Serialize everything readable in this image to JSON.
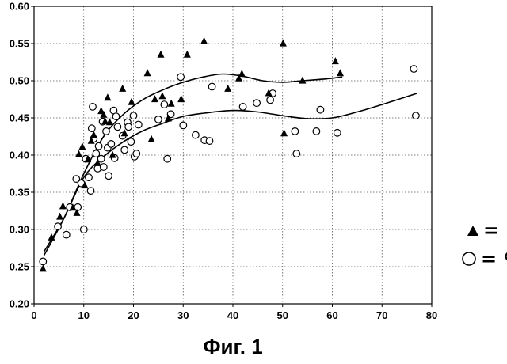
{
  "caption": "Фиг. 1",
  "chart_data": {
    "type": "scatter",
    "xlim": [
      0,
      80
    ],
    "ylim": [
      0.2,
      0.6
    ],
    "xticks": [
      "0",
      "10",
      "20",
      "30",
      "40",
      "50",
      "60",
      "70",
      "80"
    ],
    "yticks": [
      "0.20",
      "0.25",
      "0.30",
      "0.35",
      "0.40",
      "0.45",
      "0.50",
      "0.55",
      "0.60"
    ],
    "grid": "dotted",
    "legend_position": "right",
    "series": [
      {
        "name": "♂",
        "marker": "filled-triangle",
        "color": "#000000",
        "points": [
          [
            1.8,
            0.248
          ],
          [
            3.5,
            0.29
          ],
          [
            5.2,
            0.318
          ],
          [
            5.8,
            0.332
          ],
          [
            7.8,
            0.33
          ],
          [
            8.6,
            0.323
          ],
          [
            9.0,
            0.402
          ],
          [
            9.7,
            0.412
          ],
          [
            10.2,
            0.36
          ],
          [
            10.8,
            0.395
          ],
          [
            11.5,
            0.42
          ],
          [
            12.0,
            0.428
          ],
          [
            12.8,
            0.39
          ],
          [
            13.5,
            0.46
          ],
          [
            14.0,
            0.455
          ],
          [
            14.3,
            0.446
          ],
          [
            14.8,
            0.478
          ],
          [
            15.2,
            0.445
          ],
          [
            15.8,
            0.401
          ],
          [
            17.8,
            0.49
          ],
          [
            18.2,
            0.43
          ],
          [
            19.6,
            0.472
          ],
          [
            22.8,
            0.511
          ],
          [
            23.6,
            0.422
          ],
          [
            24.3,
            0.476
          ],
          [
            25.5,
            0.536
          ],
          [
            25.8,
            0.48
          ],
          [
            27.0,
            0.45
          ],
          [
            27.6,
            0.47
          ],
          [
            29.6,
            0.476
          ],
          [
            30.8,
            0.536
          ],
          [
            34.2,
            0.554
          ],
          [
            39.0,
            0.49
          ],
          [
            41.2,
            0.504
          ],
          [
            41.8,
            0.51
          ],
          [
            47.2,
            0.484
          ],
          [
            50.1,
            0.551
          ],
          [
            50.3,
            0.43
          ],
          [
            54.0,
            0.501
          ],
          [
            60.6,
            0.527
          ],
          [
            61.6,
            0.511
          ]
        ]
      },
      {
        "name": "♀",
        "marker": "open-circle",
        "color": "#000000",
        "points": [
          [
            1.8,
            0.257
          ],
          [
            4.8,
            0.304
          ],
          [
            6.5,
            0.293
          ],
          [
            7.2,
            0.33
          ],
          [
            8.5,
            0.368
          ],
          [
            8.8,
            0.33
          ],
          [
            9.5,
            0.362
          ],
          [
            10.0,
            0.3
          ],
          [
            10.4,
            0.395
          ],
          [
            11.0,
            0.37
          ],
          [
            11.4,
            0.352
          ],
          [
            11.6,
            0.436
          ],
          [
            11.8,
            0.465
          ],
          [
            12.0,
            0.422
          ],
          [
            12.5,
            0.402
          ],
          [
            12.8,
            0.382
          ],
          [
            13.0,
            0.412
          ],
          [
            13.5,
            0.395
          ],
          [
            13.8,
            0.445
          ],
          [
            14.0,
            0.384
          ],
          [
            14.5,
            0.432
          ],
          [
            14.8,
            0.41
          ],
          [
            15.0,
            0.372
          ],
          [
            15.5,
            0.415
          ],
          [
            16.0,
            0.46
          ],
          [
            16.2,
            0.396
          ],
          [
            16.5,
            0.452
          ],
          [
            16.8,
            0.438
          ],
          [
            17.8,
            0.426
          ],
          [
            18.2,
            0.407
          ],
          [
            18.8,
            0.444
          ],
          [
            19.0,
            0.438
          ],
          [
            19.5,
            0.418
          ],
          [
            20.0,
            0.453
          ],
          [
            20.2,
            0.398
          ],
          [
            20.6,
            0.402
          ],
          [
            21.0,
            0.441
          ],
          [
            25.0,
            0.448
          ],
          [
            26.2,
            0.468
          ],
          [
            26.8,
            0.395
          ],
          [
            27.5,
            0.455
          ],
          [
            29.5,
            0.505
          ],
          [
            30.0,
            0.44
          ],
          [
            32.5,
            0.427
          ],
          [
            34.3,
            0.42
          ],
          [
            35.3,
            0.419
          ],
          [
            35.8,
            0.492
          ],
          [
            42.0,
            0.465
          ],
          [
            44.8,
            0.47
          ],
          [
            47.5,
            0.474
          ],
          [
            48.0,
            0.483
          ],
          [
            52.5,
            0.432
          ],
          [
            52.8,
            0.402
          ],
          [
            56.8,
            0.432
          ],
          [
            57.6,
            0.461
          ],
          [
            61.0,
            0.43
          ],
          [
            76.4,
            0.516
          ],
          [
            76.8,
            0.453
          ]
        ]
      }
    ],
    "trend_lines": [
      {
        "series": "♂",
        "points": [
          [
            2,
            0.265
          ],
          [
            6,
            0.315
          ],
          [
            10,
            0.375
          ],
          [
            14,
            0.425
          ],
          [
            18,
            0.455
          ],
          [
            22,
            0.475
          ],
          [
            26,
            0.488
          ],
          [
            30,
            0.498
          ],
          [
            34,
            0.505
          ],
          [
            38,
            0.509
          ],
          [
            42,
            0.506
          ],
          [
            46,
            0.5
          ],
          [
            50,
            0.498
          ],
          [
            54,
            0.5
          ],
          [
            58,
            0.502
          ],
          [
            62,
            0.505
          ]
        ]
      },
      {
        "series": "♀",
        "points": [
          [
            2,
            0.27
          ],
          [
            6,
            0.315
          ],
          [
            10,
            0.37
          ],
          [
            14,
            0.398
          ],
          [
            18,
            0.418
          ],
          [
            22,
            0.433
          ],
          [
            26,
            0.443
          ],
          [
            30,
            0.452
          ],
          [
            35,
            0.457
          ],
          [
            40,
            0.46
          ],
          [
            45,
            0.458
          ],
          [
            50,
            0.453
          ],
          [
            55,
            0.449
          ],
          [
            60,
            0.45
          ],
          [
            65,
            0.458
          ],
          [
            70,
            0.468
          ],
          [
            77,
            0.483
          ]
        ]
      }
    ]
  },
  "legend": [
    {
      "symbol_name": "filled-triangle",
      "text": "= ♂"
    },
    {
      "symbol_name": "open-circle",
      "text": "= ♀"
    }
  ]
}
